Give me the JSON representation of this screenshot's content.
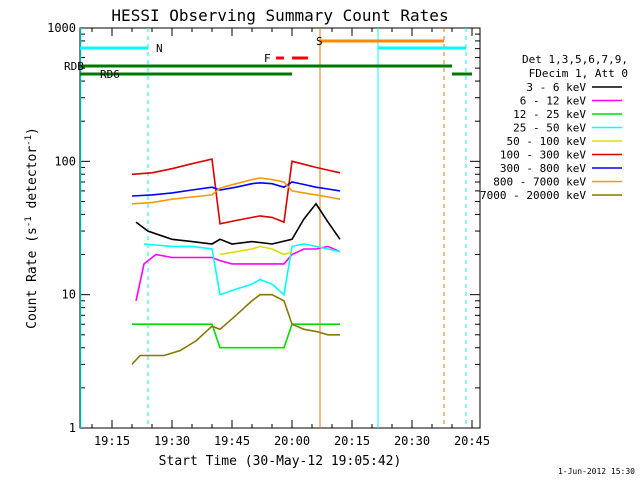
{
  "chart_data": {
    "type": "line",
    "title": "HESSI Observing Summary Count Rates",
    "xlabel": "Start Time (30-May-12 19:05:42)",
    "ylabel_main": "Count Rate (s",
    "ylabel_sup1": "-1",
    "ylabel_mid": " detector",
    "ylabel_sup2": "-1",
    "ylabel_end": ")",
    "yscale": "log",
    "ylim": [
      1,
      1000
    ],
    "xlim_min": [
      7,
      46
    ],
    "xticks": [
      {
        "v": 15,
        "label": "19:15"
      },
      {
        "v": 30,
        "label": "19:30"
      },
      {
        "v": 45,
        "label": "19:45"
      },
      {
        "v": 60,
        "label": "20:00"
      },
      {
        "v": 75,
        "label": "20:15"
      },
      {
        "v": 90,
        "label": "20:30"
      },
      {
        "v": 105,
        "label": "20:45"
      }
    ],
    "yticks": [
      {
        "v": 1,
        "label": "1"
      },
      {
        "v": 10,
        "label": "10"
      },
      {
        "v": 100,
        "label": "100"
      },
      {
        "v": 1000,
        "label": "1000"
      }
    ],
    "xrange": [
      7,
      107
    ],
    "footer": "1-Jun-2012 15:30",
    "legend_header": [
      "Det 1,3,5,6,7,9,",
      "FDecim 1, Att 0"
    ],
    "series": [
      {
        "name": "3 - 6 keV",
        "color": "#000000",
        "points": [
          [
            21,
            35
          ],
          [
            24,
            30
          ],
          [
            30,
            26
          ],
          [
            35,
            25
          ],
          [
            40,
            24
          ],
          [
            42,
            26
          ],
          [
            45,
            24
          ],
          [
            50,
            25
          ],
          [
            55,
            24
          ],
          [
            60,
            26
          ],
          [
            63,
            37
          ],
          [
            66,
            48
          ],
          [
            69,
            35
          ],
          [
            72,
            26
          ]
        ]
      },
      {
        "name": "6 - 12 keV",
        "color": "#ff00ff",
        "points": [
          [
            21,
            9
          ],
          [
            23,
            17
          ],
          [
            26,
            20
          ],
          [
            30,
            19
          ],
          [
            35,
            19
          ],
          [
            40,
            19
          ],
          [
            42,
            18
          ],
          [
            45,
            17
          ],
          [
            50,
            17
          ],
          [
            55,
            17
          ],
          [
            58,
            17
          ],
          [
            60,
            20
          ],
          [
            63,
            22
          ],
          [
            66,
            22
          ],
          [
            69,
            23
          ],
          [
            72,
            21
          ]
        ]
      },
      {
        "name": "12 - 25 keV",
        "color": "#00dd00",
        "points": [
          [
            20,
            6
          ],
          [
            25,
            6
          ],
          [
            30,
            6
          ],
          [
            35,
            6
          ],
          [
            40,
            6
          ],
          [
            42,
            4
          ],
          [
            45,
            4
          ],
          [
            50,
            4
          ],
          [
            55,
            4
          ],
          [
            58,
            4
          ],
          [
            60,
            6
          ],
          [
            65,
            6
          ],
          [
            69,
            6
          ],
          [
            72,
            6
          ]
        ]
      },
      {
        "name": "25 - 50 keV",
        "color": "#00ffff",
        "points": [
          [
            23,
            24
          ],
          [
            30,
            23
          ],
          [
            35,
            23
          ],
          [
            40,
            22
          ],
          [
            42,
            10
          ],
          [
            46,
            11
          ],
          [
            50,
            12
          ],
          [
            52,
            13
          ],
          [
            55,
            12
          ],
          [
            58,
            10
          ],
          [
            60,
            23
          ],
          [
            63,
            24
          ],
          [
            66,
            23
          ],
          [
            69,
            22
          ],
          [
            72,
            21
          ]
        ]
      },
      {
        "name": "50 - 100 keV",
        "color": "#dddd00",
        "points": [
          [
            42,
            20
          ],
          [
            46,
            21
          ],
          [
            50,
            22
          ],
          [
            52,
            23
          ],
          [
            55,
            22
          ],
          [
            58,
            20
          ],
          [
            60,
            21
          ]
        ]
      },
      {
        "name": "100 - 300 keV",
        "color": "#dd0000",
        "points": [
          [
            20,
            80
          ],
          [
            25,
            82
          ],
          [
            30,
            88
          ],
          [
            35,
            96
          ],
          [
            40,
            104
          ],
          [
            42,
            34
          ],
          [
            46,
            36
          ],
          [
            50,
            38
          ],
          [
            52,
            39
          ],
          [
            55,
            38
          ],
          [
            58,
            35
          ],
          [
            60,
            100
          ],
          [
            63,
            95
          ],
          [
            66,
            90
          ],
          [
            69,
            86
          ],
          [
            72,
            82
          ]
        ]
      },
      {
        "name": "300 - 800 keV",
        "color": "#0000ff",
        "points": [
          [
            20,
            55
          ],
          [
            25,
            56
          ],
          [
            30,
            58
          ],
          [
            35,
            61
          ],
          [
            40,
            64
          ],
          [
            42,
            61
          ],
          [
            46,
            64
          ],
          [
            50,
            68
          ],
          [
            52,
            69
          ],
          [
            55,
            68
          ],
          [
            58,
            64
          ],
          [
            60,
            70
          ],
          [
            63,
            67
          ],
          [
            66,
            64
          ],
          [
            69,
            62
          ],
          [
            72,
            60
          ]
        ]
      },
      {
        "name": "800 - 7000 keV",
        "color": "#ff9900",
        "points": [
          [
            20,
            48
          ],
          [
            25,
            49
          ],
          [
            30,
            52
          ],
          [
            35,
            54
          ],
          [
            40,
            56
          ],
          [
            42,
            63
          ],
          [
            46,
            68
          ],
          [
            50,
            73
          ],
          [
            52,
            75
          ],
          [
            55,
            73
          ],
          [
            58,
            70
          ],
          [
            60,
            60
          ],
          [
            63,
            58
          ],
          [
            66,
            56
          ],
          [
            69,
            54
          ],
          [
            72,
            52
          ]
        ]
      },
      {
        "name": "7000 - 20000 keV",
        "color": "#887700",
        "points": [
          [
            20,
            3
          ],
          [
            22,
            3.5
          ],
          [
            25,
            3.5
          ],
          [
            28,
            3.5
          ],
          [
            32,
            3.8
          ],
          [
            36,
            4.5
          ],
          [
            40,
            5.8
          ],
          [
            42,
            5.5
          ],
          [
            46,
            7
          ],
          [
            50,
            9
          ],
          [
            52,
            10
          ],
          [
            55,
            10
          ],
          [
            58,
            9
          ],
          [
            60,
            6
          ],
          [
            63,
            5.5
          ],
          [
            66,
            5.3
          ],
          [
            69,
            5
          ],
          [
            72,
            5
          ]
        ]
      }
    ],
    "flags": {
      "N_label": "N",
      "S_label": "S",
      "F_label": "F",
      "RDB_label": "RDB",
      "RD6_label": "RD6"
    }
  }
}
